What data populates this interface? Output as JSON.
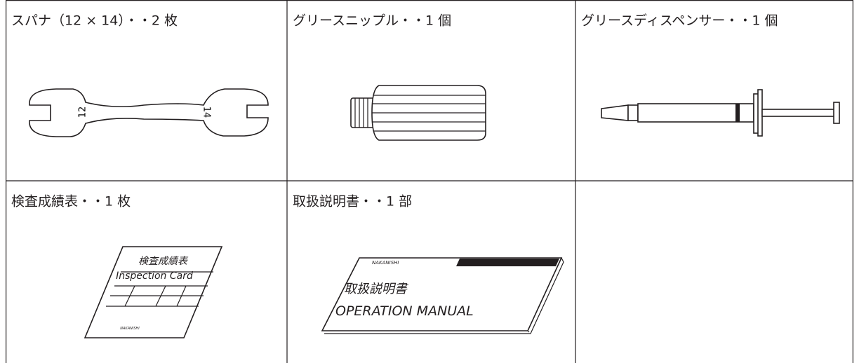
{
  "table": {
    "rows": [
      [
        {
          "label": "スパナ（12 × 14）・・2 枚",
          "texts": [
            "12",
            "14"
          ]
        },
        {
          "label": "グリースニップル・・1 個"
        },
        {
          "label": "グリースディスペンサー・・1 個"
        }
      ],
      [
        {
          "label": "検査成績表・・1 枚",
          "texts": [
            "検査成績表",
            "Inspection Card",
            "NAKANISHI"
          ]
        },
        {
          "label": "取扱説明書・・1 部",
          "texts": [
            "NAKANISHI",
            "取扱説明書",
            "OPERATION MANUAL"
          ]
        }
      ]
    ]
  }
}
